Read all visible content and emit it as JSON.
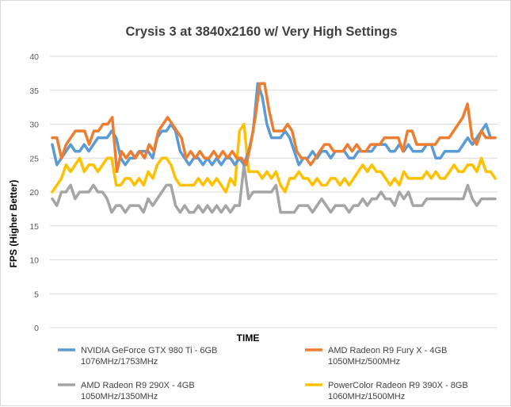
{
  "chart_data": {
    "type": "line",
    "title": "Crysis 3 at 3840x2160 w/ Very High Settings",
    "xlabel": "TIME",
    "ylabel": "FPS (Higher Better)",
    "ylim": [
      0,
      40
    ],
    "yticks": [
      0,
      5,
      10,
      15,
      20,
      25,
      30,
      35,
      40
    ],
    "grid": true,
    "legend_position": "bottom",
    "series": [
      {
        "name": "NVIDIA GeForce GTX 980 Ti - 6GB 1076MHz/1753MHz",
        "label_lines": [
          "NVIDIA GeForce GTX 980 Ti - 6GB",
          "1076MHz/1753MHz"
        ],
        "color": "#5b9bd5",
        "values": [
          27,
          24,
          25,
          26,
          27,
          26,
          26,
          27,
          26,
          27,
          28,
          28,
          28,
          29,
          28,
          25,
          24,
          25,
          25,
          26,
          26,
          26,
          25,
          28,
          29,
          29,
          30,
          29,
          26,
          25,
          24,
          25,
          25,
          24,
          25,
          24,
          25,
          24,
          25,
          25,
          24,
          25,
          24,
          26,
          29,
          36,
          34,
          30,
          28,
          28,
          28,
          29,
          28,
          26,
          24,
          25,
          25,
          26,
          25,
          26,
          26,
          25,
          26,
          26,
          26,
          25,
          25,
          26,
          26,
          26,
          26,
          27,
          27,
          27,
          26,
          26,
          27,
          26,
          27,
          26,
          26,
          26,
          27,
          27,
          25,
          25,
          26,
          26,
          26,
          26,
          27,
          28,
          27,
          28,
          29,
          30,
          28,
          28
        ]
      },
      {
        "name": "AMD Radeon R9 Fury X - 4GB 1050MHz/500MHz",
        "label_lines": [
          "AMD Radeon R9 Fury X - 4GB",
          "1050MHz/500MHz"
        ],
        "color": "#ed7d31",
        "values": [
          28,
          28,
          25,
          27,
          28,
          29,
          29,
          29,
          27,
          29,
          29,
          30,
          30,
          31,
          23,
          26,
          25,
          26,
          25,
          26,
          25,
          27,
          26,
          29,
          30,
          31,
          30,
          29,
          28,
          25,
          26,
          25,
          26,
          25,
          25,
          26,
          25,
          26,
          25,
          26,
          25,
          25,
          24,
          27,
          31,
          36,
          36,
          32,
          29,
          29,
          29,
          30,
          29,
          26,
          25,
          25,
          24,
          25,
          26,
          27,
          27,
          26,
          26,
          26,
          27,
          26,
          27,
          26,
          26,
          27,
          27,
          27,
          28,
          28,
          28,
          28,
          26,
          29,
          29,
          27,
          27,
          27,
          27,
          27,
          28,
          28,
          28,
          29,
          30,
          31,
          33,
          28,
          27,
          29,
          28,
          28,
          28
        ]
      },
      {
        "name": "AMD Radeon R9 290X - 4GB 1050MHz/1350MHz",
        "label_lines": [
          "AMD Radeon R9 290X - 4GB",
          "1050MHz/1350MHz"
        ],
        "color": "#a5a5a5",
        "values": [
          19,
          18,
          20,
          20,
          21,
          19,
          20,
          20,
          20,
          21,
          20,
          20,
          19,
          17,
          18,
          18,
          17,
          18,
          18,
          18,
          17,
          19,
          18,
          19,
          20,
          21,
          21,
          18,
          17,
          18,
          17,
          17,
          18,
          17,
          18,
          17,
          18,
          17,
          18,
          17,
          18,
          18,
          24,
          19,
          20,
          20,
          20,
          20,
          20,
          21,
          17,
          17,
          17,
          17,
          18,
          18,
          18,
          17,
          18,
          19,
          18,
          17,
          18,
          18,
          18,
          17,
          18,
          18,
          19,
          18,
          19,
          19,
          20,
          19,
          19,
          18,
          20,
          19,
          20,
          18,
          18,
          18,
          19,
          19,
          19,
          19,
          19,
          19,
          19,
          19,
          19,
          21,
          19,
          18,
          19,
          19,
          19,
          19
        ]
      },
      {
        "name": "PowerColor Radeon R9 390X - 8GB 1060MHz/1500MHz",
        "label_lines": [
          "PowerColor Radeon R9 390X - 8GB",
          "1060MHz/1500MHz"
        ],
        "color": "#ffc000",
        "values": [
          20,
          21,
          22,
          24,
          23,
          24,
          25,
          23,
          24,
          24,
          23,
          24,
          25,
          25,
          21,
          21,
          22,
          22,
          21,
          22,
          21,
          23,
          22,
          24,
          25,
          25,
          24,
          22,
          21,
          21,
          21,
          21,
          22,
          21,
          22,
          21,
          22,
          21,
          20,
          22,
          21,
          29,
          30,
          23,
          23,
          23,
          22,
          23,
          22,
          23,
          21,
          20,
          22,
          22,
          23,
          22,
          22,
          21,
          22,
          21,
          21,
          22,
          22,
          21,
          22,
          21,
          22,
          23,
          24,
          23,
          24,
          23,
          23,
          22,
          21,
          22,
          21,
          23,
          22,
          22,
          22,
          22,
          23,
          22,
          23,
          22,
          22,
          23,
          24,
          23,
          23,
          24,
          24,
          23,
          25,
          23,
          23,
          22
        ]
      }
    ]
  }
}
